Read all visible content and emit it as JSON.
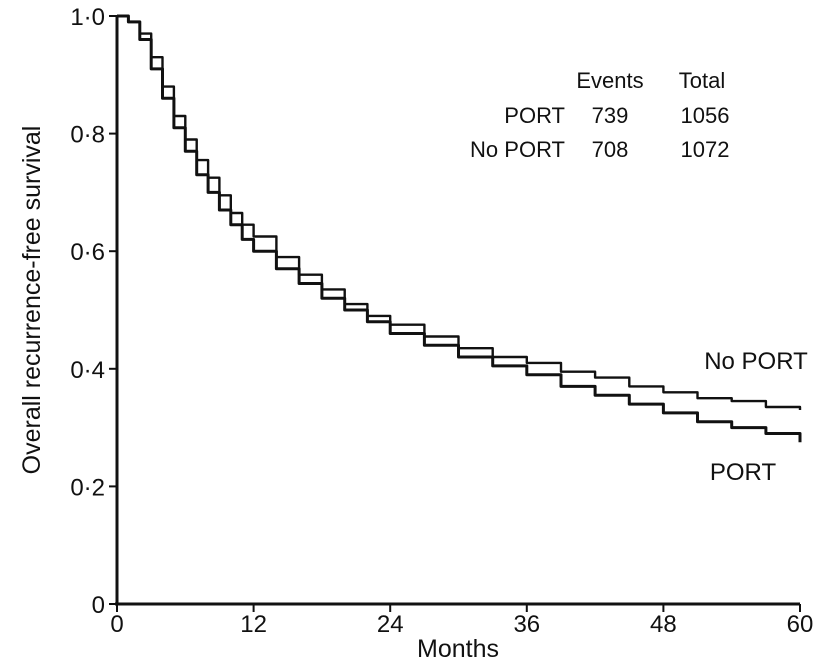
{
  "chart_data": {
    "type": "line",
    "title": "",
    "xlabel": "Months",
    "ylabel": "Overall recurrence-free survival",
    "xlim": [
      0,
      60
    ],
    "ylim": [
      0,
      1
    ],
    "x_ticks": [
      0,
      12,
      24,
      36,
      48,
      60
    ],
    "x_tick_labels": [
      "0",
      "12",
      "24",
      "36",
      "48",
      "60"
    ],
    "y_ticks": [
      0,
      0.2,
      0.4,
      0.6,
      0.8,
      1.0
    ],
    "y_tick_labels": [
      "0",
      "0·2",
      "0·4",
      "0·6",
      "0·8",
      "1·0"
    ],
    "grid": false,
    "series": [
      {
        "name": "PORT",
        "x": [
          0,
          1,
          2,
          3,
          4,
          5,
          6,
          7,
          8,
          9,
          10,
          11,
          12,
          14,
          16,
          18,
          20,
          22,
          24,
          27,
          30,
          33,
          36,
          39,
          42,
          45,
          48,
          51,
          54,
          57,
          60
        ],
        "y": [
          1.0,
          0.99,
          0.96,
          0.91,
          0.86,
          0.81,
          0.77,
          0.73,
          0.7,
          0.67,
          0.645,
          0.62,
          0.6,
          0.57,
          0.545,
          0.52,
          0.5,
          0.48,
          0.46,
          0.44,
          0.42,
          0.405,
          0.39,
          0.37,
          0.355,
          0.34,
          0.325,
          0.31,
          0.3,
          0.29,
          0.275
        ]
      },
      {
        "name": "No PORT",
        "x": [
          0,
          1,
          2,
          3,
          4,
          5,
          6,
          7,
          8,
          9,
          10,
          11,
          12,
          14,
          16,
          18,
          20,
          22,
          24,
          27,
          30,
          33,
          36,
          39,
          42,
          45,
          48,
          51,
          54,
          57,
          60
        ],
        "y": [
          1.0,
          0.99,
          0.97,
          0.93,
          0.88,
          0.83,
          0.79,
          0.755,
          0.725,
          0.695,
          0.665,
          0.645,
          0.625,
          0.59,
          0.56,
          0.535,
          0.51,
          0.49,
          0.475,
          0.455,
          0.435,
          0.42,
          0.41,
          0.395,
          0.385,
          0.37,
          0.36,
          0.35,
          0.345,
          0.335,
          0.33
        ]
      }
    ],
    "curve_labels": [
      {
        "series": "No PORT",
        "text": "No PORT"
      },
      {
        "series": "PORT",
        "text": "PORT"
      }
    ],
    "table": {
      "headers": [
        "Events",
        "Total"
      ],
      "rows": [
        {
          "label": "PORT",
          "events": "739",
          "total": "1056"
        },
        {
          "label": "No PORT",
          "events": "708",
          "total": "1072"
        }
      ]
    },
    "line_color": "#111111"
  }
}
